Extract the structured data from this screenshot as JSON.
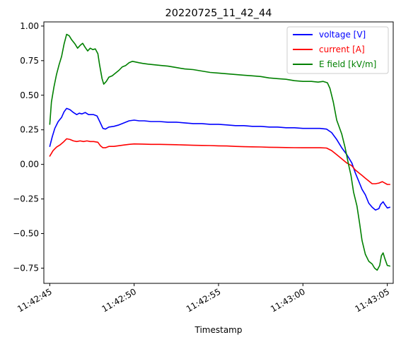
{
  "chart_data": {
    "type": "line",
    "title": "20220725_11_42_44",
    "xlabel": "Timestamp",
    "ylabel": "",
    "x_unit": "seconds",
    "x_origin": "11:42:45",
    "xlim": [
      -0.35,
      20.35
    ],
    "ylim": [
      -0.86,
      1.03
    ],
    "xticks": [
      {
        "value": 0,
        "label": "11:42:45"
      },
      {
        "value": 5,
        "label": "11:42:50"
      },
      {
        "value": 10,
        "label": "11:42:55"
      },
      {
        "value": 15,
        "label": "11:43:00"
      },
      {
        "value": 20,
        "label": "11:43:05"
      }
    ],
    "yticks": [
      {
        "value": 1.0,
        "label": "1.00"
      },
      {
        "value": 0.75,
        "label": "0.75"
      },
      {
        "value": 0.5,
        "label": "0.50"
      },
      {
        "value": 0.25,
        "label": "0.25"
      },
      {
        "value": 0.0,
        "label": "0.00"
      },
      {
        "value": -0.25,
        "label": "−0.25"
      },
      {
        "value": -0.5,
        "label": "−0.50"
      },
      {
        "value": -0.75,
        "label": "−0.75"
      }
    ],
    "legend_position": "top-right",
    "grid": false,
    "series": [
      {
        "name": "voltage [V]",
        "color": "#0000ff",
        "points": [
          [
            0.0,
            0.13
          ],
          [
            0.15,
            0.2
          ],
          [
            0.3,
            0.26
          ],
          [
            0.5,
            0.31
          ],
          [
            0.7,
            0.34
          ],
          [
            0.85,
            0.38
          ],
          [
            1.0,
            0.405
          ],
          [
            1.2,
            0.395
          ],
          [
            1.4,
            0.375
          ],
          [
            1.6,
            0.36
          ],
          [
            1.75,
            0.37
          ],
          [
            1.9,
            0.365
          ],
          [
            2.1,
            0.375
          ],
          [
            2.3,
            0.36
          ],
          [
            2.6,
            0.36
          ],
          [
            2.8,
            0.35
          ],
          [
            3.0,
            0.3
          ],
          [
            3.15,
            0.26
          ],
          [
            3.3,
            0.255
          ],
          [
            3.5,
            0.27
          ],
          [
            3.8,
            0.275
          ],
          [
            4.1,
            0.285
          ],
          [
            4.4,
            0.3
          ],
          [
            4.7,
            0.315
          ],
          [
            5.0,
            0.32
          ],
          [
            5.3,
            0.315
          ],
          [
            5.6,
            0.315
          ],
          [
            6.0,
            0.31
          ],
          [
            6.5,
            0.31
          ],
          [
            7.0,
            0.305
          ],
          [
            7.5,
            0.305
          ],
          [
            8.0,
            0.3
          ],
          [
            8.5,
            0.295
          ],
          [
            9.0,
            0.295
          ],
          [
            9.5,
            0.29
          ],
          [
            10.0,
            0.29
          ],
          [
            10.5,
            0.285
          ],
          [
            11.0,
            0.28
          ],
          [
            11.5,
            0.28
          ],
          [
            12.0,
            0.275
          ],
          [
            12.5,
            0.275
          ],
          [
            13.0,
            0.27
          ],
          [
            13.5,
            0.27
          ],
          [
            14.0,
            0.265
          ],
          [
            14.5,
            0.265
          ],
          [
            15.0,
            0.26
          ],
          [
            15.5,
            0.26
          ],
          [
            16.0,
            0.26
          ],
          [
            16.4,
            0.255
          ],
          [
            16.7,
            0.23
          ],
          [
            17.0,
            0.18
          ],
          [
            17.3,
            0.12
          ],
          [
            17.6,
            0.07
          ],
          [
            17.9,
            0.01
          ],
          [
            18.1,
            -0.06
          ],
          [
            18.3,
            -0.12
          ],
          [
            18.5,
            -0.18
          ],
          [
            18.7,
            -0.22
          ],
          [
            18.9,
            -0.28
          ],
          [
            19.1,
            -0.31
          ],
          [
            19.3,
            -0.33
          ],
          [
            19.5,
            -0.32
          ],
          [
            19.6,
            -0.29
          ],
          [
            19.75,
            -0.27
          ],
          [
            19.85,
            -0.29
          ],
          [
            20.0,
            -0.315
          ],
          [
            20.15,
            -0.31
          ]
        ]
      },
      {
        "name": "current [A]",
        "color": "#ff0000",
        "points": [
          [
            0.0,
            0.06
          ],
          [
            0.2,
            0.1
          ],
          [
            0.4,
            0.125
          ],
          [
            0.6,
            0.14
          ],
          [
            0.8,
            0.16
          ],
          [
            1.0,
            0.185
          ],
          [
            1.2,
            0.18
          ],
          [
            1.4,
            0.17
          ],
          [
            1.6,
            0.165
          ],
          [
            1.8,
            0.17
          ],
          [
            2.0,
            0.165
          ],
          [
            2.2,
            0.17
          ],
          [
            2.4,
            0.165
          ],
          [
            2.6,
            0.165
          ],
          [
            2.85,
            0.16
          ],
          [
            3.0,
            0.135
          ],
          [
            3.15,
            0.12
          ],
          [
            3.3,
            0.12
          ],
          [
            3.5,
            0.13
          ],
          [
            3.8,
            0.13
          ],
          [
            4.1,
            0.135
          ],
          [
            4.4,
            0.14
          ],
          [
            4.7,
            0.145
          ],
          [
            5.0,
            0.148
          ],
          [
            5.5,
            0.147
          ],
          [
            6.0,
            0.145
          ],
          [
            6.5,
            0.145
          ],
          [
            7.0,
            0.143
          ],
          [
            7.5,
            0.142
          ],
          [
            8.0,
            0.14
          ],
          [
            8.5,
            0.138
          ],
          [
            9.0,
            0.137
          ],
          [
            9.5,
            0.136
          ],
          [
            10.0,
            0.134
          ],
          [
            10.5,
            0.133
          ],
          [
            11.0,
            0.13
          ],
          [
            11.5,
            0.128
          ],
          [
            12.0,
            0.127
          ],
          [
            12.5,
            0.126
          ],
          [
            13.0,
            0.124
          ],
          [
            13.5,
            0.123
          ],
          [
            14.0,
            0.122
          ],
          [
            14.5,
            0.121
          ],
          [
            15.0,
            0.12
          ],
          [
            15.5,
            0.12
          ],
          [
            16.0,
            0.12
          ],
          [
            16.4,
            0.118
          ],
          [
            16.7,
            0.1
          ],
          [
            17.0,
            0.07
          ],
          [
            17.3,
            0.04
          ],
          [
            17.6,
            0.01
          ],
          [
            17.9,
            -0.01
          ],
          [
            18.1,
            -0.04
          ],
          [
            18.3,
            -0.06
          ],
          [
            18.5,
            -0.08
          ],
          [
            18.7,
            -0.1
          ],
          [
            18.9,
            -0.12
          ],
          [
            19.1,
            -0.14
          ],
          [
            19.3,
            -0.14
          ],
          [
            19.5,
            -0.135
          ],
          [
            19.7,
            -0.125
          ],
          [
            19.85,
            -0.135
          ],
          [
            20.0,
            -0.145
          ],
          [
            20.15,
            -0.145
          ]
        ]
      },
      {
        "name": "E field [kV/m]",
        "color": "#008000",
        "points": [
          [
            0.0,
            0.29
          ],
          [
            0.1,
            0.45
          ],
          [
            0.25,
            0.56
          ],
          [
            0.4,
            0.65
          ],
          [
            0.55,
            0.72
          ],
          [
            0.7,
            0.78
          ],
          [
            0.85,
            0.87
          ],
          [
            1.0,
            0.94
          ],
          [
            1.15,
            0.93
          ],
          [
            1.3,
            0.9
          ],
          [
            1.5,
            0.87
          ],
          [
            1.65,
            0.84
          ],
          [
            1.8,
            0.86
          ],
          [
            1.95,
            0.875
          ],
          [
            2.1,
            0.845
          ],
          [
            2.25,
            0.82
          ],
          [
            2.4,
            0.84
          ],
          [
            2.55,
            0.83
          ],
          [
            2.7,
            0.835
          ],
          [
            2.85,
            0.8
          ],
          [
            2.95,
            0.72
          ],
          [
            3.1,
            0.62
          ],
          [
            3.2,
            0.58
          ],
          [
            3.35,
            0.6
          ],
          [
            3.5,
            0.63
          ],
          [
            3.7,
            0.64
          ],
          [
            3.9,
            0.66
          ],
          [
            4.1,
            0.68
          ],
          [
            4.3,
            0.705
          ],
          [
            4.5,
            0.715
          ],
          [
            4.7,
            0.735
          ],
          [
            4.9,
            0.745
          ],
          [
            5.1,
            0.74
          ],
          [
            5.3,
            0.735
          ],
          [
            5.5,
            0.73
          ],
          [
            5.8,
            0.725
          ],
          [
            6.2,
            0.72
          ],
          [
            6.6,
            0.715
          ],
          [
            7.0,
            0.71
          ],
          [
            7.5,
            0.7
          ],
          [
            8.0,
            0.69
          ],
          [
            8.5,
            0.685
          ],
          [
            9.0,
            0.675
          ],
          [
            9.5,
            0.665
          ],
          [
            10.0,
            0.66
          ],
          [
            10.5,
            0.655
          ],
          [
            11.0,
            0.65
          ],
          [
            11.5,
            0.645
          ],
          [
            12.0,
            0.64
          ],
          [
            12.5,
            0.635
          ],
          [
            13.0,
            0.625
          ],
          [
            13.5,
            0.62
          ],
          [
            14.0,
            0.615
          ],
          [
            14.5,
            0.605
          ],
          [
            15.0,
            0.6
          ],
          [
            15.5,
            0.6
          ],
          [
            15.9,
            0.595
          ],
          [
            16.2,
            0.6
          ],
          [
            16.45,
            0.59
          ],
          [
            16.6,
            0.55
          ],
          [
            16.8,
            0.45
          ],
          [
            17.0,
            0.32
          ],
          [
            17.3,
            0.22
          ],
          [
            17.5,
            0.12
          ],
          [
            17.7,
            0.0
          ],
          [
            17.85,
            -0.08
          ],
          [
            18.0,
            -0.2
          ],
          [
            18.2,
            -0.3
          ],
          [
            18.35,
            -0.42
          ],
          [
            18.5,
            -0.55
          ],
          [
            18.7,
            -0.65
          ],
          [
            18.9,
            -0.7
          ],
          [
            19.1,
            -0.72
          ],
          [
            19.25,
            -0.75
          ],
          [
            19.4,
            -0.765
          ],
          [
            19.55,
            -0.73
          ],
          [
            19.65,
            -0.66
          ],
          [
            19.75,
            -0.64
          ],
          [
            19.85,
            -0.68
          ],
          [
            20.0,
            -0.73
          ],
          [
            20.15,
            -0.735
          ]
        ]
      }
    ]
  }
}
